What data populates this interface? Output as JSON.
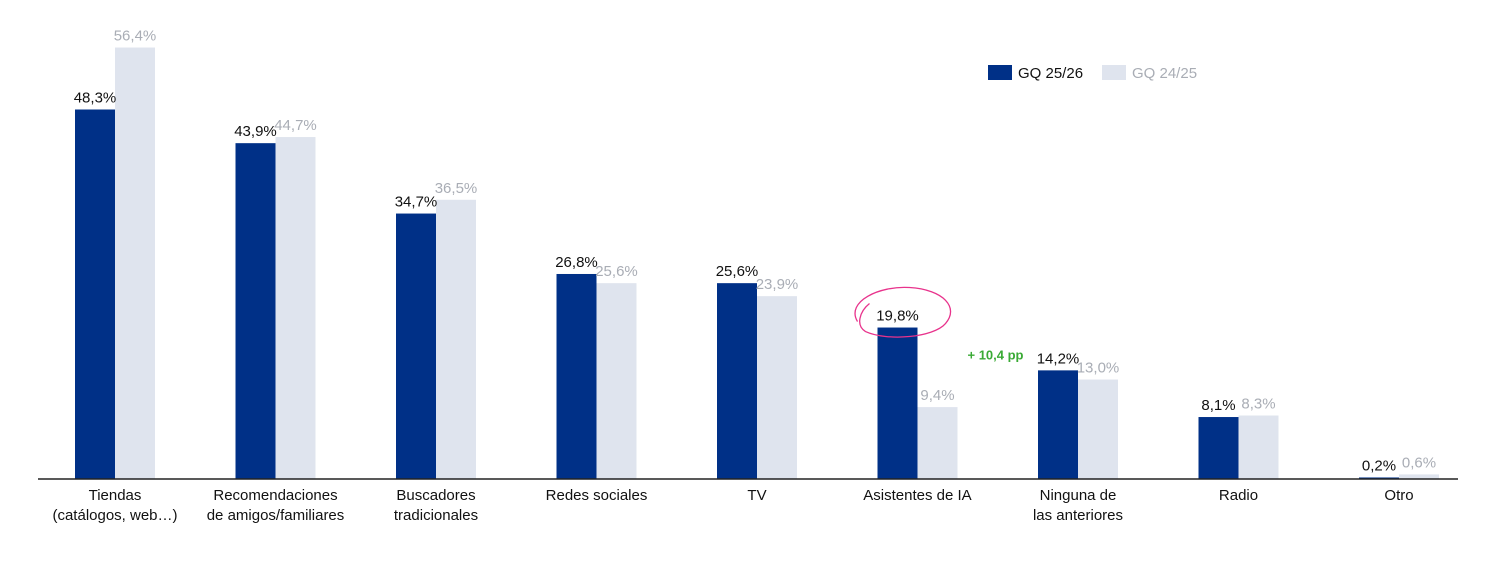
{
  "chart_data": {
    "type": "bar",
    "categories": [
      [
        "Tiendas",
        "(catálogos, web…)"
      ],
      [
        "Recomendaciones",
        "de amigos/familiares"
      ],
      [
        "Buscadores",
        "tradicionales"
      ],
      [
        "Redes sociales"
      ],
      [
        "TV"
      ],
      [
        "Asistentes de IA"
      ],
      [
        "Ninguna de",
        "las anteriores"
      ],
      [
        "Radio"
      ],
      [
        "Otro"
      ]
    ],
    "series": [
      {
        "name": "GQ 25/26",
        "color": "#003087",
        "label_color": "#111111",
        "values": [
          48.3,
          43.9,
          34.7,
          26.8,
          25.6,
          19.8,
          14.2,
          8.1,
          0.2
        ],
        "labels": [
          "48,3%",
          "43,9%",
          "34,7%",
          "26,8%",
          "25,6%",
          "19,8%",
          "14,2%",
          "8,1%",
          "0,2%"
        ]
      },
      {
        "name": "GQ 24/25",
        "color": "#dfe4ee",
        "label_color": "#a9adb5",
        "values": [
          56.4,
          44.7,
          36.5,
          25.6,
          23.9,
          9.4,
          13.0,
          8.3,
          0.6
        ],
        "labels": [
          "56,4%",
          "44,7%",
          "36,5%",
          "25,6%",
          "23,9%",
          "9,4%",
          "13,0%",
          "8,3%",
          "0,6%"
        ]
      }
    ],
    "ylim": [
      0,
      60
    ],
    "grid": false,
    "legend_position": "top-right",
    "annotations": [
      {
        "category_index": 5,
        "text": "+ 10,4 pp",
        "color": "#3aaa35",
        "highlight_color": "#e8338c"
      }
    ],
    "title": "",
    "xlabel": "",
    "ylabel": ""
  }
}
